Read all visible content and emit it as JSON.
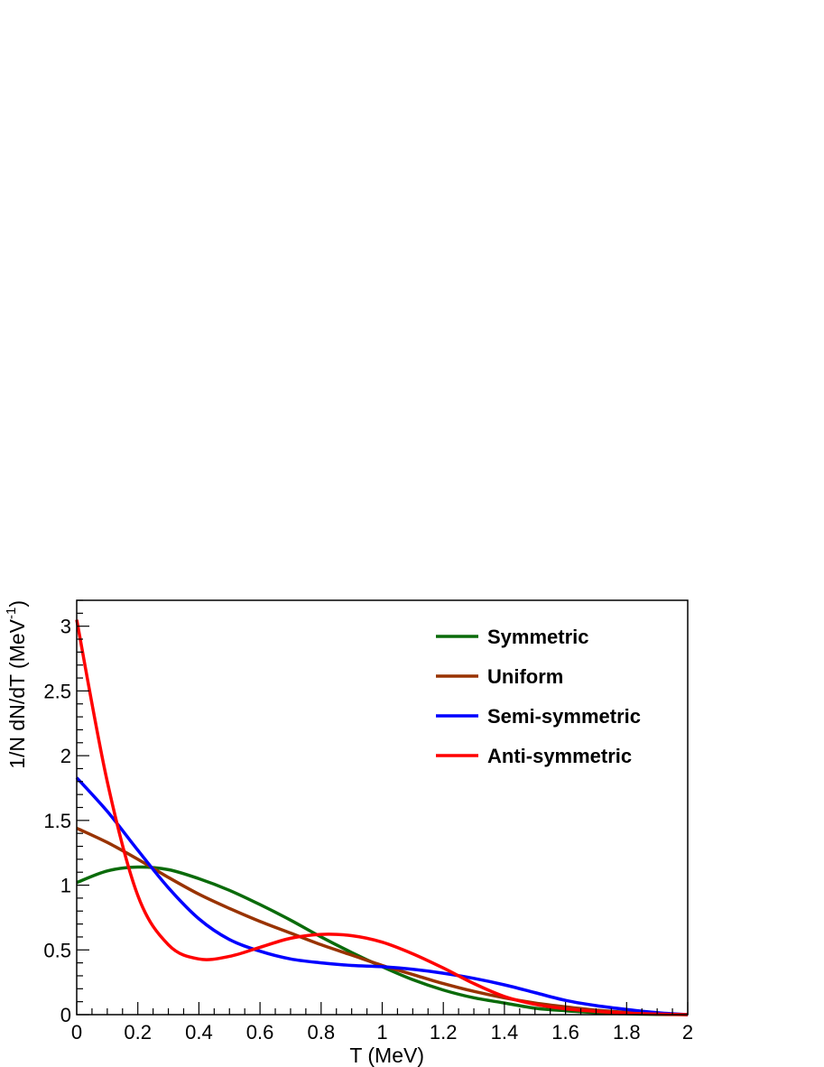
{
  "chart_data": {
    "type": "line",
    "title": "",
    "xlabel": "T (MeV)",
    "ylabel_main": "1/N dN/dT (MeV",
    "ylabel_sup": "-1",
    "ylabel_close": ")",
    "xlim": [
      0,
      2
    ],
    "ylim": [
      0,
      3.2
    ],
    "grid": false,
    "legend_position": "top-right",
    "x_ticks": [
      {
        "value": 0,
        "label": "0"
      },
      {
        "value": 0.2,
        "label": "0.2"
      },
      {
        "value": 0.4,
        "label": "0.4"
      },
      {
        "value": 0.6,
        "label": "0.6"
      },
      {
        "value": 0.8,
        "label": "0.8"
      },
      {
        "value": 1,
        "label": "1"
      },
      {
        "value": 1.2,
        "label": "1.2"
      },
      {
        "value": 1.4,
        "label": "1.4"
      },
      {
        "value": 1.6,
        "label": "1.6"
      },
      {
        "value": 1.8,
        "label": "1.8"
      },
      {
        "value": 2,
        "label": "2"
      }
    ],
    "y_ticks": [
      {
        "value": 0,
        "label": "0"
      },
      {
        "value": 0.5,
        "label": "0.5"
      },
      {
        "value": 1,
        "label": "1"
      },
      {
        "value": 1.5,
        "label": "1.5"
      },
      {
        "value": 2,
        "label": "2"
      },
      {
        "value": 2.5,
        "label": "2.5"
      },
      {
        "value": 3,
        "label": "3"
      }
    ],
    "x": [
      0,
      0.1,
      0.2,
      0.3,
      0.4,
      0.5,
      0.6,
      0.7,
      0.8,
      0.9,
      1.0,
      1.1,
      1.2,
      1.3,
      1.4,
      1.5,
      1.6,
      1.7,
      1.8,
      1.9,
      2.0
    ],
    "series": [
      {
        "name": "Symmetric",
        "color": "#0a6b0a",
        "values": [
          1.02,
          1.11,
          1.14,
          1.12,
          1.05,
          0.96,
          0.85,
          0.73,
          0.6,
          0.48,
          0.37,
          0.27,
          0.19,
          0.13,
          0.09,
          0.05,
          0.03,
          0.015,
          0.007,
          0.002,
          0.0
        ]
      },
      {
        "name": "Uniform",
        "color": "#993300",
        "values": [
          1.44,
          1.33,
          1.2,
          1.06,
          0.93,
          0.82,
          0.72,
          0.63,
          0.54,
          0.46,
          0.38,
          0.31,
          0.24,
          0.18,
          0.13,
          0.09,
          0.06,
          0.035,
          0.018,
          0.007,
          0.0
        ]
      },
      {
        "name": "Semi-symmetric",
        "color": "#0000ff",
        "values": [
          1.83,
          1.57,
          1.27,
          0.98,
          0.74,
          0.58,
          0.49,
          0.43,
          0.4,
          0.38,
          0.37,
          0.35,
          0.32,
          0.28,
          0.23,
          0.17,
          0.11,
          0.07,
          0.04,
          0.015,
          0.0
        ]
      },
      {
        "name": "Anti-symmetric",
        "color": "#ff0000",
        "values": [
          3.05,
          1.8,
          0.92,
          0.54,
          0.43,
          0.45,
          0.52,
          0.59,
          0.62,
          0.61,
          0.56,
          0.47,
          0.36,
          0.24,
          0.14,
          0.08,
          0.045,
          0.025,
          0.012,
          0.004,
          0.0
        ]
      }
    ]
  }
}
